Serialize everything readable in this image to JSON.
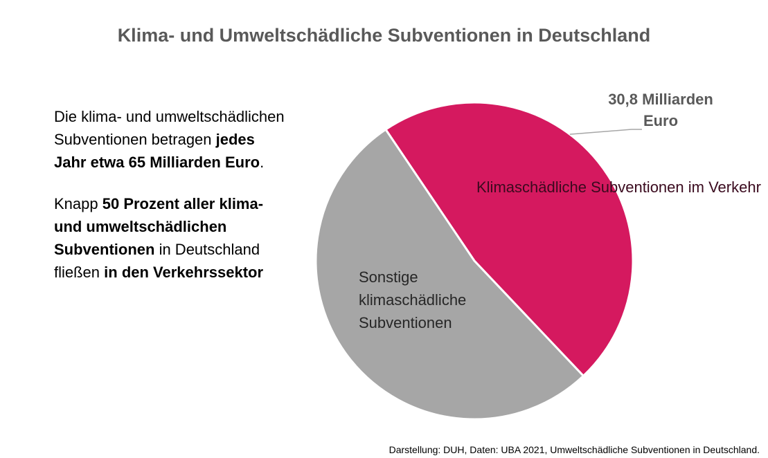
{
  "chart_data": {
    "type": "pie",
    "title": "Klima- und Umweltschädliche Subventionen in Deutschland",
    "slices": [
      {
        "label": "Klimaschädliche Subventionen im Verkehr",
        "value": 30.8,
        "color": "#D5195F"
      },
      {
        "label": "Sonstige klimaschädliche Subventionen",
        "value": 34.2,
        "color": "#A6A6A6"
      }
    ],
    "callout": "30,8 Milliarden Euro"
  },
  "text": {
    "p1_a": "Die klima- und umweltschädlichen Subventionen betragen ",
    "p1_b": "jedes Jahr etwa 65 Milliarden Euro",
    "p1_c": ".",
    "p2_a": "Knapp ",
    "p2_b": "50 Prozent aller klima- und umweltschädlichen Subventionen",
    "p2_c": " in Deutschland fließen ",
    "p2_d": "in den Verkehrssektor"
  },
  "source": "Darstellung: DUH, Daten: UBA 2021, Umweltschädliche Subventionen in Deutschland."
}
